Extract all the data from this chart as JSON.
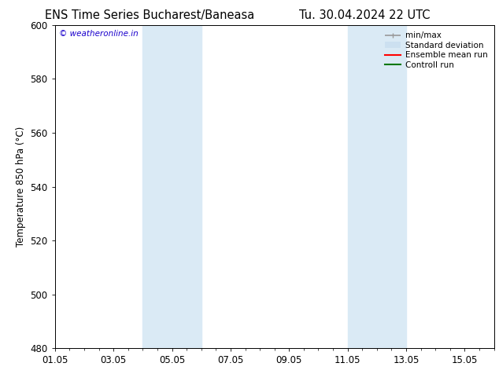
{
  "title_left": "ENS Time Series Bucharest/Baneasa",
  "title_right": "Tu. 30.04.2024 22 UTC",
  "ylabel": "Temperature 850 hPa (°C)",
  "ylim": [
    480,
    600
  ],
  "yticks": [
    480,
    500,
    520,
    540,
    560,
    580,
    600
  ],
  "xtick_labels": [
    "01.05",
    "03.05",
    "05.05",
    "07.05",
    "09.05",
    "11.05",
    "13.05",
    "15.05"
  ],
  "xtick_positions": [
    0,
    2,
    4,
    6,
    8,
    10,
    12,
    14
  ],
  "xlim": [
    0,
    15
  ],
  "shaded_bands": [
    {
      "x_start": 3.0,
      "x_end": 5.0
    },
    {
      "x_start": 10.0,
      "x_end": 12.0
    }
  ],
  "watermark_text": "© weatheronline.in",
  "watermark_color": "#1a00cc",
  "legend_entries": [
    {
      "label": "min/max",
      "color": "#999999",
      "lw": 1.2,
      "style": "solid"
    },
    {
      "label": "Standard deviation",
      "color": "#cce0f0",
      "lw": 8,
      "style": "solid"
    },
    {
      "label": "Ensemble mean run",
      "color": "#ff0000",
      "lw": 1.5,
      "style": "solid"
    },
    {
      "label": "Controll run",
      "color": "#007700",
      "lw": 1.5,
      "style": "solid"
    }
  ],
  "bg_color": "#ffffff",
  "plot_bg_color": "#ffffff",
  "band_color": "#daeaf5",
  "title_fontsize": 10.5,
  "axis_label_fontsize": 8.5,
  "tick_fontsize": 8.5,
  "legend_fontsize": 7.5
}
